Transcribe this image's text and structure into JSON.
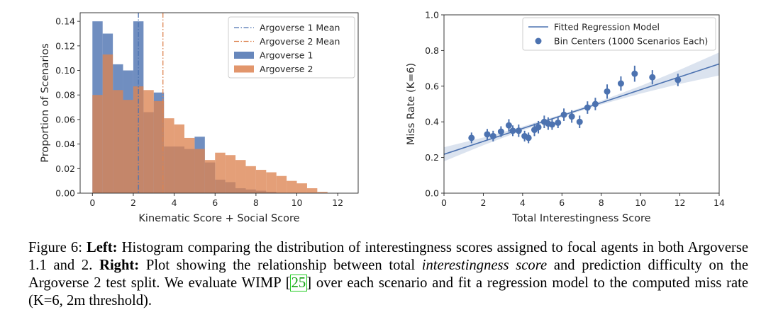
{
  "left_chart": {
    "type": "bar",
    "xlabel": "Kinematic Score + Social Score",
    "ylabel": "Proportion of Scenarios",
    "xlim": [
      -0.6,
      13.0
    ],
    "ylim": [
      0,
      0.147
    ],
    "xticks": [
      "0",
      "2",
      "4",
      "6",
      "8",
      "10",
      "12"
    ],
    "yticks": [
      "0.00",
      "0.02",
      "0.04",
      "0.06",
      "0.08",
      "0.10",
      "0.12",
      "0.14"
    ],
    "bin_width": 0.5,
    "bin_starts": [
      0.0,
      0.5,
      1.0,
      1.5,
      2.0,
      2.5,
      3.0,
      3.5,
      4.0,
      4.5,
      5.0,
      5.5,
      6.0,
      6.5,
      7.0,
      7.5,
      8.0,
      8.5,
      9.0,
      9.5,
      10.0,
      10.5,
      11.0,
      11.5
    ],
    "series": [
      {
        "name": "Argoverse 1",
        "color": "#4c72b0",
        "values": [
          0.14,
          0.13,
          0.105,
          0.1,
          0.14,
          0.066,
          0.082,
          0.038,
          0.038,
          0.036,
          0.046,
          0.025,
          0.011,
          0.009,
          0.004,
          0.003,
          0.002,
          0.001,
          0.0,
          0.0,
          0.0,
          0.0,
          0.0,
          0.0
        ]
      },
      {
        "name": "Argoverse 2",
        "color": "#dd8452",
        "values": [
          0.08,
          0.113,
          0.084,
          0.076,
          0.087,
          0.084,
          0.075,
          0.061,
          0.056,
          0.045,
          0.036,
          0.027,
          0.033,
          0.031,
          0.027,
          0.022,
          0.019,
          0.017,
          0.014,
          0.01,
          0.008,
          0.004,
          0.001,
          0.0
        ]
      }
    ],
    "mean_lines": [
      {
        "name": "Argoverse 1   Mean",
        "x": 2.25,
        "color": "#4c72b0"
      },
      {
        "name": "Argoverse 2   Mean",
        "x": 3.45,
        "color": "#dd8452"
      }
    ],
    "legend_position": "top-right"
  },
  "right_chart": {
    "type": "scatter",
    "xlabel": "Total Interestingness Score",
    "ylabel": "Miss Rate (K=6)",
    "xlim": [
      0,
      14
    ],
    "ylim": [
      0.0,
      1.0
    ],
    "xticks": [
      "0",
      "2",
      "4",
      "6",
      "8",
      "10",
      "12",
      "14"
    ],
    "yticks": [
      "0.0",
      "0.2",
      "0.4",
      "0.6",
      "0.8",
      "1.0"
    ],
    "line_color": "#4c72b0",
    "regression": {
      "name": "Fitted Regression Model",
      "intercept": 0.218,
      "slope": 0.0362
    },
    "points_name": "Bin Centers (1000 Scenarios Each)",
    "points": [
      {
        "x": 1.4,
        "y": 0.31,
        "err": 0.03
      },
      {
        "x": 2.2,
        "y": 0.33,
        "err": 0.03
      },
      {
        "x": 2.5,
        "y": 0.32,
        "err": 0.03
      },
      {
        "x": 2.9,
        "y": 0.345,
        "err": 0.03
      },
      {
        "x": 3.3,
        "y": 0.38,
        "err": 0.035
      },
      {
        "x": 3.5,
        "y": 0.35,
        "err": 0.03
      },
      {
        "x": 3.8,
        "y": 0.35,
        "err": 0.035
      },
      {
        "x": 4.1,
        "y": 0.32,
        "err": 0.03
      },
      {
        "x": 4.3,
        "y": 0.31,
        "err": 0.03
      },
      {
        "x": 4.6,
        "y": 0.355,
        "err": 0.035
      },
      {
        "x": 4.8,
        "y": 0.37,
        "err": 0.035
      },
      {
        "x": 5.1,
        "y": 0.4,
        "err": 0.035
      },
      {
        "x": 5.3,
        "y": 0.39,
        "err": 0.035
      },
      {
        "x": 5.5,
        "y": 0.385,
        "err": 0.03
      },
      {
        "x": 5.8,
        "y": 0.395,
        "err": 0.03
      },
      {
        "x": 6.1,
        "y": 0.44,
        "err": 0.035
      },
      {
        "x": 6.5,
        "y": 0.43,
        "err": 0.035
      },
      {
        "x": 6.9,
        "y": 0.4,
        "err": 0.035
      },
      {
        "x": 7.3,
        "y": 0.48,
        "err": 0.035
      },
      {
        "x": 7.7,
        "y": 0.5,
        "err": 0.035
      },
      {
        "x": 8.3,
        "y": 0.57,
        "err": 0.04
      },
      {
        "x": 9.0,
        "y": 0.615,
        "err": 0.04
      },
      {
        "x": 9.7,
        "y": 0.67,
        "err": 0.045
      },
      {
        "x": 10.6,
        "y": 0.65,
        "err": 0.04
      },
      {
        "x": 11.9,
        "y": 0.635,
        "err": 0.035
      }
    ],
    "legend_position": "top-left"
  },
  "caption": {
    "label": "Figure 6:",
    "left_bold": "Left:",
    "left_text": "Histogram comparing the distribution of interestingness scores assigned to focal agents in both Argoverse 1.1 and 2.",
    "right_bold": "Right:",
    "right_text1": "Plot showing the relationship between total",
    "right_italic": "interestingness score",
    "right_text2": "and prediction difficulty on the Argoverse 2 test split. We evaluate WIMP",
    "citation": "25",
    "right_text3": "over each scenario and fit a regression model to the computed miss rate (K=6, 2m threshold)."
  }
}
